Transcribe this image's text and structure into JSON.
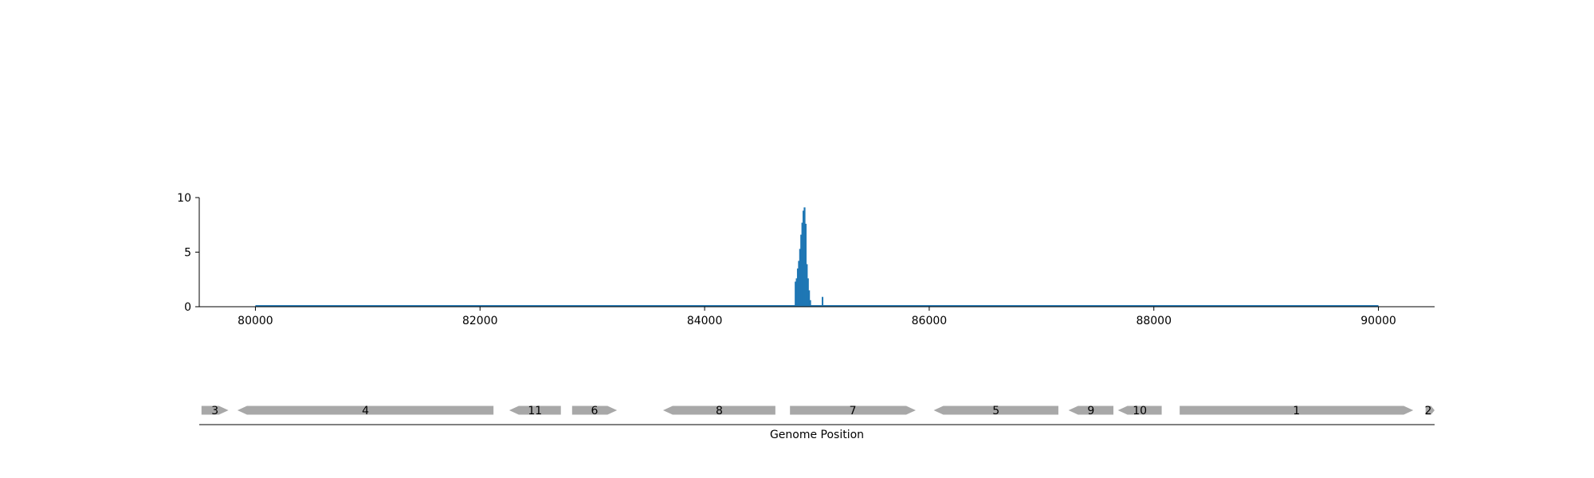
{
  "chart_data": [
    {
      "type": "bar",
      "title": "",
      "xlabel": "",
      "ylabel": "",
      "xlim": [
        79500,
        90500
      ],
      "ylim": [
        0,
        10
      ],
      "xticks": [
        80000,
        82000,
        84000,
        86000,
        88000,
        90000
      ],
      "xtick_labels": [
        "80000",
        "82000",
        "84000",
        "86000",
        "88000",
        "90000"
      ],
      "yticks": [
        0,
        5,
        10
      ],
      "ytick_labels": [
        "0",
        "5",
        "10"
      ],
      "baseline": {
        "x_start": 80000,
        "x_end": 90000,
        "y": 0
      },
      "color": "#1f77b4",
      "x": [
        84810,
        84820,
        84830,
        84840,
        84850,
        84860,
        84870,
        84880,
        84890,
        84900,
        84910,
        84920,
        84930,
        84940,
        85050
      ],
      "values": [
        2.3,
        2.6,
        3.5,
        4.2,
        5.3,
        6.6,
        7.7,
        8.8,
        9.1,
        7.6,
        3.9,
        2.6,
        1.5,
        0.6,
        0.9
      ],
      "grid": false
    },
    {
      "type": "gene_track",
      "xlabel": "Genome Position",
      "xlim": [
        79500,
        90500
      ],
      "color": "#a8a8a8",
      "genes": [
        {
          "label": "3",
          "start": 79520,
          "end": 79760,
          "strand": "+"
        },
        {
          "label": "4",
          "start": 79840,
          "end": 82120,
          "strand": "-"
        },
        {
          "label": "11",
          "start": 82260,
          "end": 82720,
          "strand": "-"
        },
        {
          "label": "6",
          "start": 82820,
          "end": 83220,
          "strand": "+"
        },
        {
          "label": "8",
          "start": 83630,
          "end": 84630,
          "strand": "-"
        },
        {
          "label": "7",
          "start": 84760,
          "end": 85880,
          "strand": "+"
        },
        {
          "label": "5",
          "start": 86040,
          "end": 87150,
          "strand": "-"
        },
        {
          "label": "9",
          "start": 87240,
          "end": 87640,
          "strand": "-"
        },
        {
          "label": "10",
          "start": 87680,
          "end": 88070,
          "strand": "-"
        },
        {
          "label": "1",
          "start": 88230,
          "end": 90310,
          "strand": "+"
        },
        {
          "label": "2",
          "start": 90420,
          "end": 90520,
          "strand": "+"
        }
      ]
    }
  ]
}
